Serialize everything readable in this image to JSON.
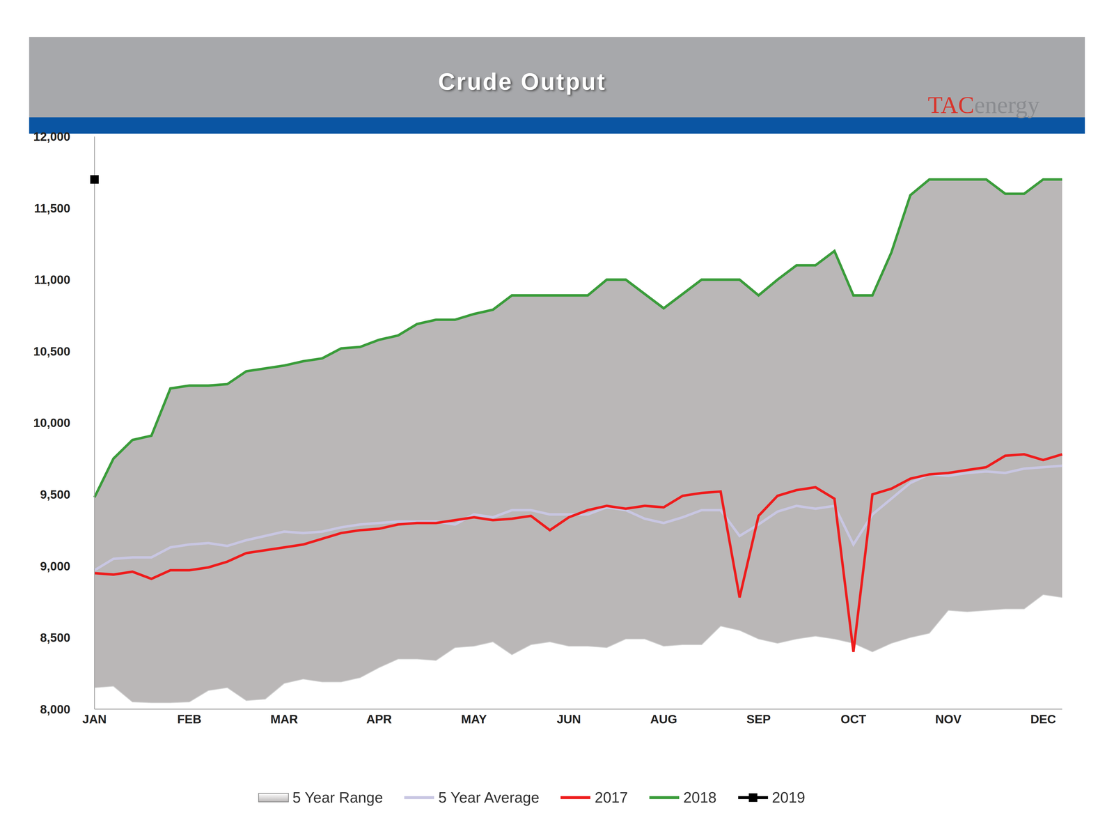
{
  "chart_data": {
    "type": "line",
    "title": "Crude Output",
    "annotations": [
      "TACenergy"
    ],
    "categories": [
      "JAN",
      null,
      null,
      null,
      null,
      "FEB",
      null,
      null,
      null,
      null,
      "MAR",
      null,
      null,
      null,
      null,
      "APR",
      null,
      null,
      null,
      null,
      "MAY",
      null,
      null,
      null,
      null,
      "JUN",
      null,
      null,
      null,
      null,
      "AUG",
      null,
      null,
      null,
      null,
      "SEP",
      null,
      null,
      null,
      null,
      "OCT",
      null,
      null,
      null,
      null,
      "NOV",
      null,
      null,
      null,
      null,
      "DEC",
      null
    ],
    "ylim": [
      8000,
      12000
    ],
    "yticks": [
      {
        "value": 8000,
        "label": "8,000"
      },
      {
        "value": 8500,
        "label": "8,500"
      },
      {
        "value": 9000,
        "label": "9,000"
      },
      {
        "value": 9500,
        "label": "9,500"
      },
      {
        "value": 10000,
        "label": "10,000"
      },
      {
        "value": 10500,
        "label": "10,500"
      },
      {
        "value": 11000,
        "label": "11,000"
      },
      {
        "value": 11500,
        "label": "11,500"
      },
      {
        "value": 12000,
        "label": "12,000"
      }
    ],
    "grid": false,
    "legend": "bottom",
    "series": [
      {
        "name": "5 Year Range",
        "type": "area",
        "color": "#bab7b7",
        "low": [
          8150,
          8160,
          8050,
          8045,
          8045,
          8050,
          8130,
          8150,
          8060,
          8070,
          8180,
          8210,
          8190,
          8190,
          8220,
          8290,
          8350,
          8350,
          8340,
          8430,
          8440,
          8470,
          8380,
          8450,
          8470,
          8440,
          8440,
          8430,
          8490,
          8490,
          8440,
          8450,
          8450,
          8580,
          8550,
          8490,
          8460,
          8490,
          8510,
          8490,
          8460,
          8400,
          8460,
          8500,
          8530,
          8690,
          8680,
          8690,
          8700,
          8700,
          8800,
          8780
        ],
        "high": [
          9480,
          9750,
          9880,
          9910,
          10240,
          10260,
          10260,
          10270,
          10360,
          10380,
          10400,
          10430,
          10450,
          10520,
          10530,
          10580,
          10610,
          10690,
          10720,
          10720,
          10760,
          10790,
          10890,
          10890,
          10890,
          10890,
          10890,
          11000,
          11000,
          10900,
          10800,
          10900,
          11000,
          11000,
          11000,
          10890,
          11000,
          11100,
          11100,
          11200,
          10890,
          10890,
          11190,
          11590,
          11700,
          11700,
          11700,
          11700,
          11600,
          11600,
          11700,
          11700
        ]
      },
      {
        "name": "5 Year Average",
        "type": "line",
        "color": "#c8c6e2",
        "values": [
          8970,
          9050,
          9060,
          9060,
          9130,
          9150,
          9160,
          9140,
          9180,
          9210,
          9240,
          9230,
          9240,
          9270,
          9290,
          9300,
          9310,
          9310,
          9310,
          9290,
          9360,
          9340,
          9390,
          9390,
          9360,
          9360,
          9360,
          9410,
          9390,
          9330,
          9300,
          9340,
          9390,
          9390,
          9210,
          9290,
          9380,
          9420,
          9400,
          9420,
          9150,
          9360,
          9470,
          9580,
          9640,
          9630,
          9650,
          9660,
          9650,
          9680,
          9690,
          9700
        ]
      },
      {
        "name": "2017",
        "type": "line",
        "color": "#ee1c1c",
        "values": [
          8950,
          8940,
          8960,
          8910,
          8970,
          8970,
          8990,
          9030,
          9090,
          9110,
          9130,
          9150,
          9190,
          9230,
          9250,
          9260,
          9290,
          9300,
          9300,
          9320,
          9340,
          9320,
          9330,
          9350,
          9250,
          9340,
          9390,
          9420,
          9400,
          9420,
          9410,
          9490,
          9510,
          9520,
          8780,
          9350,
          9490,
          9530,
          9550,
          9470,
          8400,
          9500,
          9540,
          9610,
          9640,
          9650,
          9670,
          9690,
          9770,
          9780,
          9740,
          9780
        ]
      },
      {
        "name": "2018",
        "type": "line",
        "color": "#3a9c3a",
        "values": [
          9480,
          9750,
          9880,
          9910,
          10240,
          10260,
          10260,
          10270,
          10360,
          10380,
          10400,
          10430,
          10450,
          10520,
          10530,
          10580,
          10610,
          10690,
          10720,
          10720,
          10760,
          10790,
          10890,
          10890,
          10890,
          10890,
          10890,
          11000,
          11000,
          10900,
          10800,
          10900,
          11000,
          11000,
          11000,
          10890,
          11000,
          11100,
          11100,
          11200,
          10890,
          10890,
          11190,
          11590,
          11700,
          11700,
          11700,
          11700,
          11600,
          11600,
          11700,
          11700
        ]
      },
      {
        "name": "2019",
        "type": "line",
        "color": "#000000",
        "marker": "square",
        "values": [
          11700,
          null,
          null,
          null,
          null,
          null,
          null,
          null,
          null,
          null,
          null,
          null,
          null,
          null,
          null,
          null,
          null,
          null,
          null,
          null,
          null,
          null,
          null,
          null,
          null,
          null,
          null,
          null,
          null,
          null,
          null,
          null,
          null,
          null,
          null,
          null,
          null,
          null,
          null,
          null,
          null,
          null,
          null,
          null,
          null,
          null,
          null,
          null,
          null,
          null,
          null,
          null
        ]
      }
    ]
  }
}
